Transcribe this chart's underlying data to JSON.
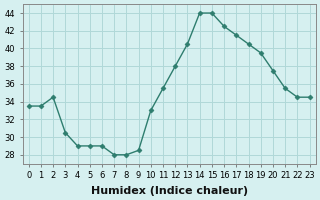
{
  "x": [
    0,
    1,
    2,
    3,
    4,
    5,
    6,
    7,
    8,
    9,
    10,
    11,
    12,
    13,
    14,
    15,
    16,
    17,
    18,
    19,
    20,
    21,
    22,
    23
  ],
  "y": [
    33.5,
    33.5,
    34.5,
    30.5,
    29,
    29,
    29,
    28,
    28,
    28.5,
    33,
    35.5,
    38,
    40.5,
    44,
    44,
    42.5,
    41.5,
    40.5,
    39.5,
    37.5,
    35.5,
    34.5,
    34.5
  ],
  "line_color": "#2e7d6e",
  "marker": "D",
  "marker_size": 2.5,
  "bg_color": "#d6f0f0",
  "grid_color": "#b0d8d8",
  "xlabel": "Humidex (Indice chaleur)",
  "xlabel_fontsize": 8,
  "tick_fontsize": 6,
  "xlim": [
    -0.5,
    23.5
  ],
  "ylim": [
    27,
    45
  ],
  "yticks": [
    28,
    30,
    32,
    34,
    36,
    38,
    40,
    42,
    44
  ],
  "xticks": [
    0,
    1,
    2,
    3,
    4,
    5,
    6,
    7,
    8,
    9,
    10,
    11,
    12,
    13,
    14,
    15,
    16,
    17,
    18,
    19,
    20,
    21,
    22,
    23
  ]
}
